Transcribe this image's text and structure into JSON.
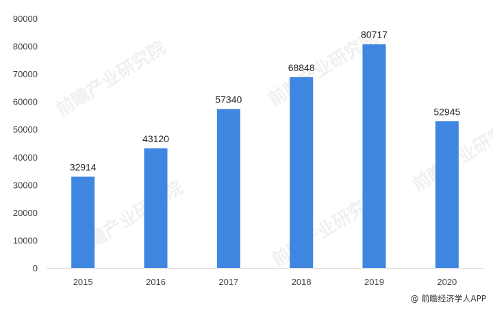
{
  "chart_data": {
    "type": "bar",
    "categories": [
      "2015",
      "2016",
      "2017",
      "2018",
      "2019",
      "2020"
    ],
    "values": [
      32914,
      43120,
      57340,
      68848,
      80717,
      52945
    ],
    "ylim": [
      0,
      90000
    ],
    "yticks": [
      0,
      10000,
      20000,
      30000,
      40000,
      50000,
      60000,
      70000,
      80000,
      90000
    ],
    "ytick_labels": [
      "0",
      "10000",
      "20000",
      "30000",
      "40000",
      "50000",
      "60000",
      "70000",
      "80000",
      "90000"
    ],
    "data_labels": [
      "32914",
      "43120",
      "57340",
      "68848",
      "80717",
      "52945"
    ],
    "grid": false,
    "legend": "none",
    "bar_color": "#3f86e0"
  },
  "watermark": {
    "text": "前瞻产业研究院"
  },
  "credit": {
    "text": "@ 前瞻经济学人APP"
  }
}
